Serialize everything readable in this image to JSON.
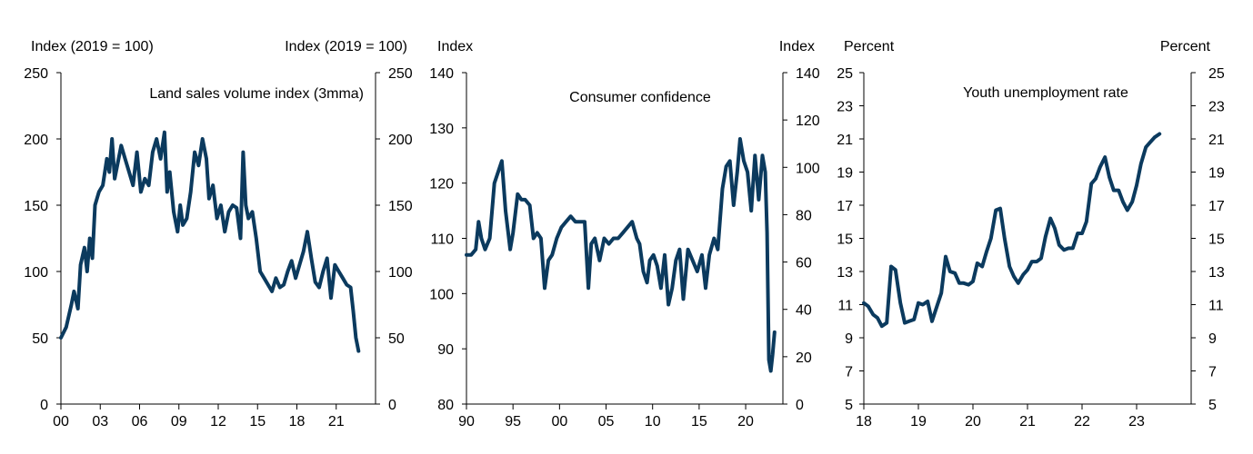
{
  "colors": {
    "series": "#0b3a5e",
    "axis": "#000000",
    "text": "#000000"
  },
  "chart_data": [
    {
      "type": "line",
      "title": "Land sales volume index (3mma)",
      "left_unit": "Index (2019 = 100)",
      "right_unit": "Index (2019 = 100)",
      "xlim": [
        2000,
        2024
      ],
      "ylim_left": [
        0,
        250
      ],
      "ylim_right": [
        0,
        250
      ],
      "x_ticks": [
        2000,
        2003,
        2006,
        2009,
        2012,
        2015,
        2018,
        2021
      ],
      "x_tick_labels": [
        "00",
        "03",
        "06",
        "09",
        "12",
        "15",
        "18",
        "21"
      ],
      "y_ticks_left": [
        0,
        50,
        100,
        150,
        200,
        250
      ],
      "y_tick_labels_left": [
        "0",
        "50",
        "100",
        "150",
        "200",
        "250"
      ],
      "y_ticks_right": [
        0,
        50,
        100,
        150,
        200,
        250
      ],
      "y_tick_labels_right": [
        "0",
        "50",
        "100",
        "150",
        "200",
        "250"
      ],
      "series": [
        {
          "name": "Land sales volume index (3mma)",
          "axis": "left",
          "x": [
            2000.0,
            2000.4,
            2000.8,
            2001.0,
            2001.3,
            2001.5,
            2001.8,
            2002.0,
            2002.2,
            2002.4,
            2002.6,
            2002.9,
            2003.2,
            2003.5,
            2003.7,
            2003.9,
            2004.1,
            2004.3,
            2004.6,
            2004.9,
            2005.2,
            2005.5,
            2005.8,
            2006.1,
            2006.4,
            2006.7,
            2007.0,
            2007.3,
            2007.6,
            2007.9,
            2008.1,
            2008.3,
            2008.6,
            2008.9,
            2009.1,
            2009.3,
            2009.6,
            2009.9,
            2010.2,
            2010.5,
            2010.8,
            2011.1,
            2011.3,
            2011.6,
            2011.9,
            2012.2,
            2012.5,
            2012.8,
            2013.1,
            2013.4,
            2013.7,
            2013.9,
            2014.1,
            2014.3,
            2014.6,
            2014.9,
            2015.2,
            2015.5,
            2015.8,
            2016.1,
            2016.4,
            2016.7,
            2017.0,
            2017.3,
            2017.6,
            2017.9,
            2018.2,
            2018.5,
            2018.8,
            2019.1,
            2019.4,
            2019.7,
            2020.0,
            2020.3,
            2020.6,
            2020.9,
            2021.2,
            2021.5,
            2021.8,
            2022.1,
            2022.3,
            2022.5,
            2022.7
          ],
          "y": [
            50,
            58,
            75,
            85,
            72,
            105,
            118,
            100,
            125,
            110,
            150,
            160,
            165,
            185,
            175,
            200,
            170,
            180,
            195,
            185,
            175,
            165,
            190,
            160,
            170,
            165,
            190,
            200,
            185,
            205,
            160,
            175,
            145,
            130,
            150,
            135,
            140,
            160,
            190,
            180,
            200,
            185,
            155,
            165,
            140,
            150,
            130,
            145,
            150,
            148,
            125,
            190,
            150,
            140,
            145,
            125,
            100,
            95,
            90,
            85,
            95,
            88,
            90,
            100,
            108,
            95,
            105,
            115,
            130,
            110,
            92,
            88,
            100,
            110,
            80,
            105,
            100,
            95,
            90,
            88,
            70,
            50,
            40
          ],
          "color": "#0b3a5e"
        }
      ]
    },
    {
      "type": "line",
      "title": "Consumer confidence",
      "left_unit": "Index",
      "right_unit": "Index",
      "xlim": [
        1990,
        2024
      ],
      "ylim_left": [
        80,
        140
      ],
      "ylim_right": [
        0,
        140
      ],
      "x_ticks": [
        1990,
        1995,
        2000,
        2005,
        2010,
        2015,
        2020
      ],
      "x_tick_labels": [
        "90",
        "95",
        "00",
        "05",
        "10",
        "15",
        "20"
      ],
      "y_ticks_left": [
        80,
        90,
        100,
        110,
        120,
        130,
        140
      ],
      "y_tick_labels_left": [
        "80",
        "90",
        "100",
        "110",
        "120",
        "130",
        "140"
      ],
      "y_ticks_right": [
        0,
        20,
        40,
        60,
        80,
        100,
        120,
        140
      ],
      "y_tick_labels_right": [
        "0",
        "20",
        "40",
        "60",
        "80",
        "100",
        "120",
        "140"
      ],
      "series": [
        {
          "name": "Consumer confidence",
          "axis": "left",
          "x": [
            1990.0,
            1990.5,
            1991.0,
            1991.3,
            1991.6,
            1992.0,
            1992.5,
            1993.0,
            1993.4,
            1993.8,
            1994.2,
            1994.7,
            1995.0,
            1995.5,
            1995.9,
            1996.3,
            1996.8,
            1997.2,
            1997.6,
            1998.0,
            1998.4,
            1998.8,
            1999.2,
            1999.7,
            2000.2,
            2000.7,
            2001.2,
            2001.7,
            2002.2,
            2002.7,
            2003.1,
            2003.4,
            2003.8,
            2004.3,
            2004.8,
            2005.3,
            2005.8,
            2006.3,
            2006.8,
            2007.3,
            2007.8,
            2008.3,
            2008.6,
            2009.0,
            2009.4,
            2009.7,
            2010.1,
            2010.5,
            2010.9,
            2011.3,
            2011.7,
            2012.1,
            2012.5,
            2012.9,
            2013.3,
            2013.8,
            2014.3,
            2014.8,
            2015.3,
            2015.7,
            2016.1,
            2016.6,
            2017.0,
            2017.5,
            2017.9,
            2018.3,
            2018.7,
            2019.1,
            2019.4,
            2019.8,
            2020.2,
            2020.6,
            2021.0,
            2021.4,
            2021.8,
            2022.1,
            2022.3,
            2022.5,
            2022.7,
            2022.9,
            2023.1
          ],
          "y": [
            107,
            107,
            108,
            113,
            110,
            108,
            110,
            120,
            122,
            124,
            115,
            108,
            111,
            118,
            117,
            117,
            116,
            110,
            111,
            110,
            101,
            106,
            107,
            110,
            112,
            113,
            114,
            113,
            113,
            113,
            101,
            109,
            110,
            106,
            110,
            109,
            110,
            110,
            111,
            112,
            113,
            110,
            109,
            104,
            102,
            106,
            107,
            105,
            101,
            107,
            98,
            101,
            106,
            108,
            99,
            108,
            106,
            104,
            107,
            101,
            107,
            110,
            108,
            119,
            123,
            124,
            116,
            122,
            128,
            124,
            122,
            115,
            125,
            117,
            125,
            122,
            111,
            88,
            86,
            89,
            93
          ],
          "color": "#0b3a5e"
        }
      ]
    },
    {
      "type": "line",
      "title": "Youth unemployment rate",
      "left_unit": "Percent",
      "right_unit": "Percent",
      "xlim": [
        2018,
        2024
      ],
      "ylim_left": [
        5,
        25
      ],
      "ylim_right": [
        5,
        25
      ],
      "x_ticks": [
        2018,
        2019,
        2020,
        2021,
        2022,
        2023
      ],
      "x_tick_labels": [
        "18",
        "19",
        "20",
        "21",
        "22",
        "23"
      ],
      "y_ticks_left": [
        5,
        7,
        9,
        11,
        13,
        15,
        17,
        19,
        21,
        23,
        25
      ],
      "y_tick_labels_left": [
        "5",
        "7",
        "9",
        "11",
        "13",
        "15",
        "17",
        "19",
        "21",
        "23",
        "25"
      ],
      "y_ticks_right": [
        5,
        7,
        9,
        11,
        13,
        15,
        17,
        19,
        21,
        23,
        25
      ],
      "y_tick_labels_right": [
        "5",
        "7",
        "9",
        "11",
        "13",
        "15",
        "17",
        "19",
        "21",
        "23",
        "25"
      ],
      "series": [
        {
          "name": "Youth unemployment rate",
          "axis": "left",
          "x": [
            2018.0,
            2018.08,
            2018.17,
            2018.25,
            2018.33,
            2018.42,
            2018.5,
            2018.58,
            2018.67,
            2018.75,
            2018.83,
            2018.92,
            2019.0,
            2019.08,
            2019.17,
            2019.25,
            2019.33,
            2019.42,
            2019.5,
            2019.58,
            2019.67,
            2019.75,
            2019.83,
            2019.92,
            2020.0,
            2020.08,
            2020.17,
            2020.25,
            2020.33,
            2020.42,
            2020.5,
            2020.58,
            2020.67,
            2020.75,
            2020.83,
            2020.92,
            2021.0,
            2021.08,
            2021.17,
            2021.25,
            2021.33,
            2021.42,
            2021.5,
            2021.58,
            2021.67,
            2021.75,
            2021.83,
            2021.92,
            2022.0,
            2022.08,
            2022.17,
            2022.25,
            2022.33,
            2022.42,
            2022.5,
            2022.58,
            2022.67,
            2022.75,
            2022.83,
            2022.92,
            2023.0,
            2023.08,
            2023.17,
            2023.25,
            2023.33,
            2023.42
          ],
          "y": [
            11.1,
            10.9,
            10.4,
            10.2,
            9.7,
            9.9,
            13.3,
            13.1,
            11.1,
            9.9,
            10.0,
            10.1,
            11.1,
            11.0,
            11.2,
            10.0,
            10.8,
            11.7,
            13.9,
            13.0,
            12.9,
            12.3,
            12.3,
            12.2,
            12.4,
            13.5,
            13.3,
            14.2,
            15.0,
            16.7,
            16.8,
            15.0,
            13.3,
            12.7,
            12.3,
            12.8,
            13.1,
            13.6,
            13.6,
            13.8,
            15.1,
            16.2,
            15.6,
            14.6,
            14.3,
            14.4,
            14.4,
            15.3,
            15.3,
            16.0,
            18.3,
            18.6,
            19.3,
            19.9,
            18.7,
            17.9,
            17.9,
            17.2,
            16.7,
            17.2,
            18.2,
            19.5,
            20.5,
            20.8,
            21.1,
            21.3
          ],
          "color": "#0b3a5e"
        }
      ]
    }
  ]
}
